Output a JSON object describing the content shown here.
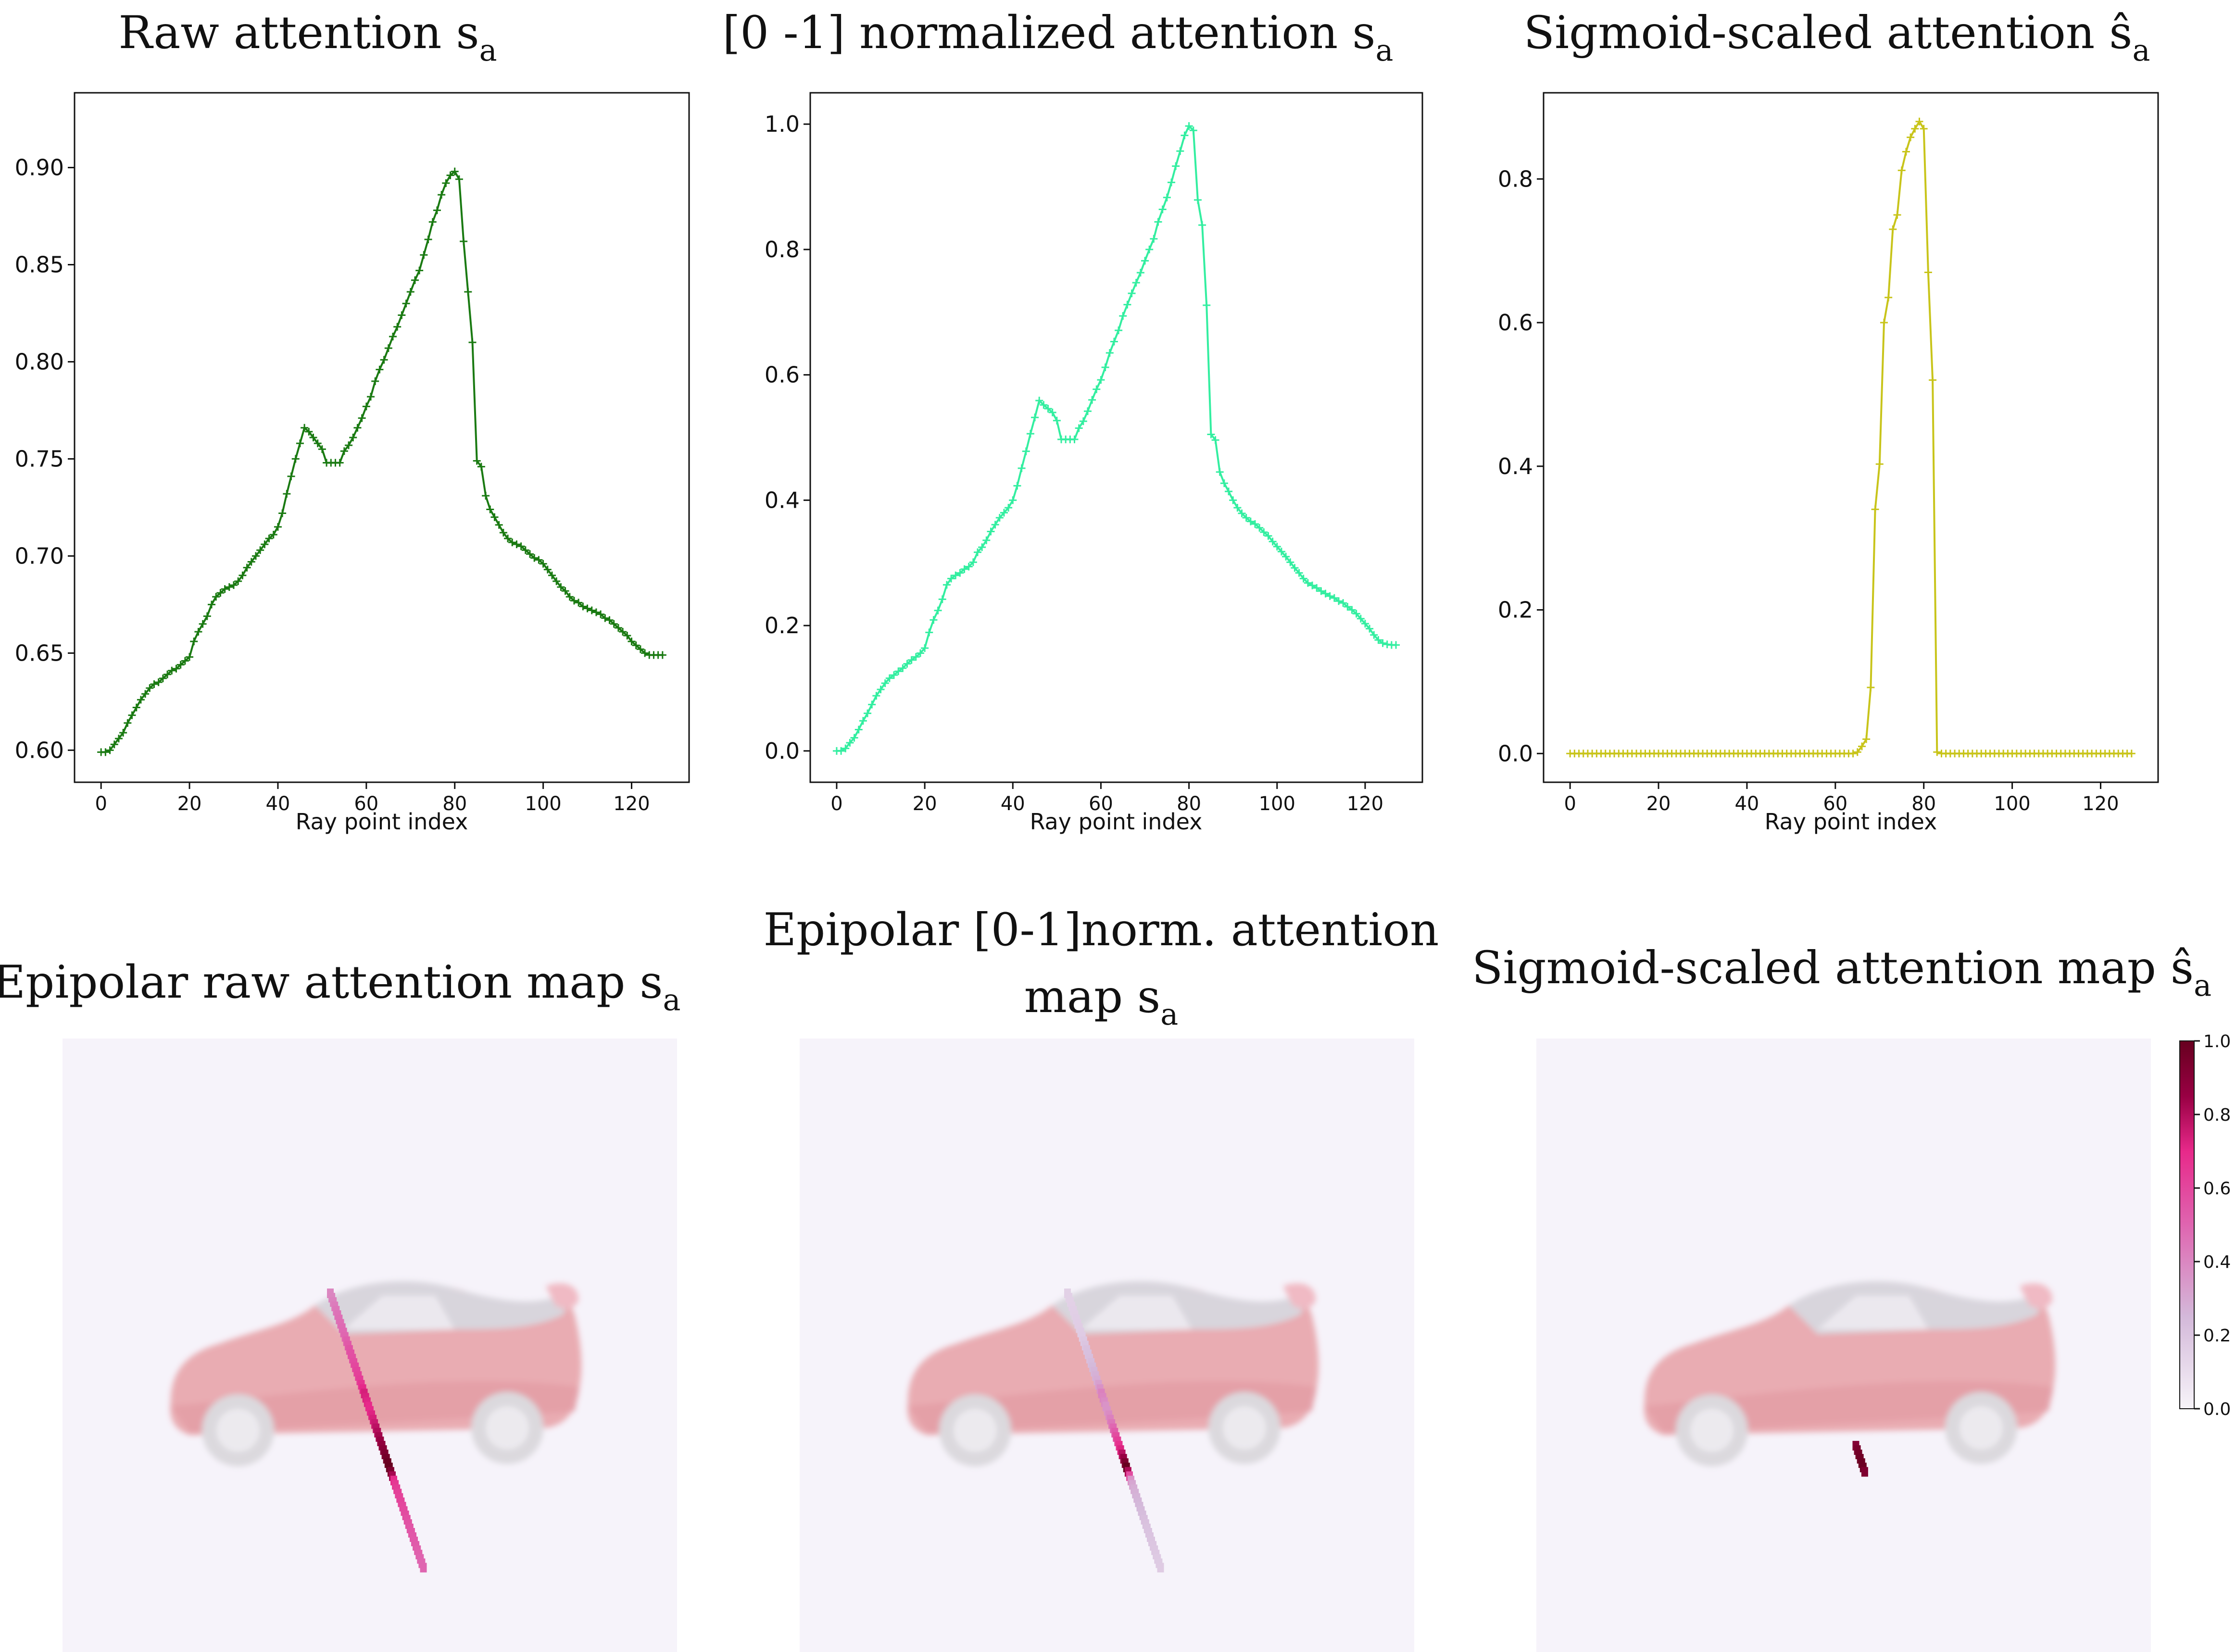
{
  "figure": {
    "colors": {
      "raw": "#1a7a12",
      "normalized": "#33eea0",
      "sigmoid": "#c8c41a",
      "map_background": "#f6f3fa"
    },
    "colormap": {
      "name": "PuRd",
      "stops": [
        "#f7f4f9",
        "#d4b9da",
        "#df65b0",
        "#e7298a",
        "#980043",
        "#67001f"
      ],
      "ticks": [
        "0.0",
        "0.2",
        "0.4",
        "0.6",
        "0.8",
        "1.0"
      ]
    }
  },
  "chart_data": [
    {
      "type": "line",
      "title": "Raw attention s",
      "title_sub": "a",
      "xlabel": "Ray point index",
      "ylabel": "",
      "xlim": [
        -6,
        133
      ],
      "ylim": [
        0.5835,
        0.9385
      ],
      "x_ticks": [
        0,
        20,
        40,
        60,
        80,
        100,
        120
      ],
      "y_ticks": [
        0.6,
        0.65,
        0.7,
        0.75,
        0.8,
        0.85,
        0.9
      ],
      "y_tick_labels": [
        "0.60",
        "0.65",
        "0.70",
        "0.75",
        "0.80",
        "0.85",
        "0.90"
      ],
      "grid": false,
      "marker": "+",
      "x_start": 0,
      "values": [
        0.599,
        0.599,
        0.6,
        0.603,
        0.606,
        0.609,
        0.614,
        0.618,
        0.622,
        0.626,
        0.629,
        0.632,
        0.634,
        0.635,
        0.637,
        0.639,
        0.641,
        0.642,
        0.644,
        0.646,
        0.648,
        0.656,
        0.661,
        0.665,
        0.669,
        0.675,
        0.679,
        0.681,
        0.683,
        0.684,
        0.685,
        0.687,
        0.69,
        0.694,
        0.697,
        0.7,
        0.703,
        0.706,
        0.709,
        0.711,
        0.715,
        0.722,
        0.732,
        0.741,
        0.75,
        0.758,
        0.766,
        0.764,
        0.761,
        0.758,
        0.755,
        0.748,
        0.748,
        0.748,
        0.748,
        0.754,
        0.757,
        0.761,
        0.766,
        0.771,
        0.777,
        0.782,
        0.79,
        0.796,
        0.801,
        0.807,
        0.813,
        0.818,
        0.824,
        0.83,
        0.836,
        0.842,
        0.847,
        0.855,
        0.863,
        0.872,
        0.878,
        0.886,
        0.892,
        0.896,
        0.898,
        0.894,
        0.862,
        0.836,
        0.81,
        0.749,
        0.746,
        0.731,
        0.724,
        0.72,
        0.716,
        0.712,
        0.709,
        0.707,
        0.706,
        0.705,
        0.703,
        0.701,
        0.699,
        0.698,
        0.696,
        0.693,
        0.69,
        0.687,
        0.684,
        0.682,
        0.679,
        0.677,
        0.676,
        0.674,
        0.673,
        0.672,
        0.671,
        0.67,
        0.668,
        0.667,
        0.665,
        0.663,
        0.661,
        0.659,
        0.656,
        0.654,
        0.652,
        0.65,
        0.649,
        0.649,
        0.649,
        0.649
      ]
    },
    {
      "type": "line",
      "title": "[0 -1] normalized attention s",
      "title_sub": "a",
      "xlabel": "Ray point index",
      "ylabel": "",
      "xlim": [
        -6,
        133
      ],
      "ylim": [
        -0.05,
        1.05
      ],
      "x_ticks": [
        0,
        20,
        40,
        60,
        80,
        100,
        120
      ],
      "y_ticks": [
        0.0,
        0.2,
        0.4,
        0.6,
        0.8,
        1.0
      ],
      "y_tick_labels": [
        "0.0",
        "0.2",
        "0.4",
        "0.6",
        "0.8",
        "1.0"
      ],
      "grid": false,
      "marker": "+",
      "x_start": 0,
      "values": [
        0.0,
        0.0,
        0.004,
        0.013,
        0.021,
        0.034,
        0.048,
        0.06,
        0.074,
        0.088,
        0.098,
        0.108,
        0.116,
        0.121,
        0.127,
        0.132,
        0.139,
        0.145,
        0.15,
        0.156,
        0.164,
        0.189,
        0.209,
        0.224,
        0.242,
        0.265,
        0.275,
        0.28,
        0.284,
        0.29,
        0.294,
        0.301,
        0.317,
        0.325,
        0.336,
        0.35,
        0.361,
        0.372,
        0.38,
        0.388,
        0.4,
        0.423,
        0.451,
        0.478,
        0.506,
        0.532,
        0.559,
        0.552,
        0.546,
        0.54,
        0.527,
        0.497,
        0.497,
        0.497,
        0.497,
        0.515,
        0.526,
        0.542,
        0.56,
        0.577,
        0.592,
        0.612,
        0.635,
        0.653,
        0.671,
        0.694,
        0.712,
        0.73,
        0.747,
        0.763,
        0.782,
        0.8,
        0.817,
        0.844,
        0.864,
        0.883,
        0.907,
        0.933,
        0.957,
        0.982,
        0.997,
        0.99,
        0.879,
        0.839,
        0.711,
        0.505,
        0.496,
        0.445,
        0.427,
        0.414,
        0.4,
        0.388,
        0.379,
        0.372,
        0.366,
        0.362,
        0.356,
        0.349,
        0.343,
        0.334,
        0.326,
        0.318,
        0.31,
        0.301,
        0.292,
        0.284,
        0.275,
        0.268,
        0.264,
        0.26,
        0.255,
        0.251,
        0.247,
        0.244,
        0.239,
        0.236,
        0.23,
        0.225,
        0.219,
        0.211,
        0.203,
        0.195,
        0.185,
        0.177,
        0.172,
        0.17,
        0.169,
        0.169
      ]
    },
    {
      "type": "line",
      "title": "Sigmoid-scaled attention ŝ",
      "title_sub": "a",
      "xlabel": "Ray point index",
      "ylabel": "",
      "xlim": [
        -6,
        133
      ],
      "ylim": [
        -0.04,
        0.92
      ],
      "x_ticks": [
        0,
        20,
        40,
        60,
        80,
        100,
        120
      ],
      "y_ticks": [
        0.0,
        0.2,
        0.4,
        0.6,
        0.8
      ],
      "y_tick_labels": [
        "0.0",
        "0.2",
        "0.4",
        "0.6",
        "0.8"
      ],
      "grid": false,
      "marker": "+",
      "x_start": 0,
      "values": [
        0.0,
        0.0,
        0.0,
        0.0,
        0.0,
        0.0,
        0.0,
        0.0,
        0.0,
        0.0,
        0.0,
        0.0,
        0.0,
        0.0,
        0.0,
        0.0,
        0.0,
        0.0,
        0.0,
        0.0,
        0.0,
        0.0,
        0.0,
        0.0,
        0.0,
        0.0,
        0.0,
        0.0,
        0.0,
        0.0,
        0.0,
        0.0,
        0.0,
        0.0,
        0.0,
        0.0,
        0.0,
        0.0,
        0.0,
        0.0,
        0.0,
        0.0,
        0.0,
        0.0,
        0.0,
        0.0,
        0.0,
        0.0,
        0.0,
        0.0,
        0.0,
        0.0,
        0.0,
        0.0,
        0.0,
        0.0,
        0.0,
        0.0,
        0.0,
        0.0,
        0.0,
        0.0,
        0.0,
        0.0,
        0.0,
        0.002,
        0.01,
        0.02,
        0.092,
        0.34,
        0.403,
        0.6,
        0.635,
        0.73,
        0.75,
        0.812,
        0.838,
        0.858,
        0.87,
        0.88,
        0.87,
        0.67,
        0.52,
        0.002,
        0.0,
        0.0,
        0.0,
        0.0,
        0.0,
        0.0,
        0.0,
        0.0,
        0.0,
        0.0,
        0.0,
        0.0,
        0.0,
        0.0,
        0.0,
        0.0,
        0.0,
        0.0,
        0.0,
        0.0,
        0.0,
        0.0,
        0.0,
        0.0,
        0.0,
        0.0,
        0.0,
        0.0,
        0.0,
        0.0,
        0.0,
        0.0,
        0.0,
        0.0,
        0.0,
        0.0,
        0.0,
        0.0,
        0.0,
        0.0,
        0.0,
        0.0,
        0.0,
        0.0
      ]
    },
    {
      "type": "heatmap",
      "title": "Epipolar raw attention map s",
      "title_sub": "a",
      "colorscale": "PuRd",
      "intensity_profile": "raw",
      "intensity_floor": 0.4,
      "ray_start_index": 0,
      "ray_end_index": 127
    },
    {
      "type": "heatmap",
      "title": "Epipolar [0-1]norm. attention",
      "title_line2": "map s",
      "title_sub": "a",
      "colorscale": "PuRd",
      "intensity_profile": "normalized",
      "intensity_floor": 0.0,
      "ray_start_index": 0,
      "ray_end_index": 127
    },
    {
      "type": "heatmap",
      "title": "Sigmoid-scaled attention map ŝ",
      "title_sub": "a",
      "colorscale": "PuRd",
      "intensity_profile": "sigmoid",
      "intensity_floor": 0.0,
      "ray_start_index": 0,
      "ray_end_index": 127,
      "colorbar_ticks": [
        "0.0",
        "0.2",
        "0.4",
        "0.6",
        "0.8",
        "1.0"
      ]
    }
  ]
}
